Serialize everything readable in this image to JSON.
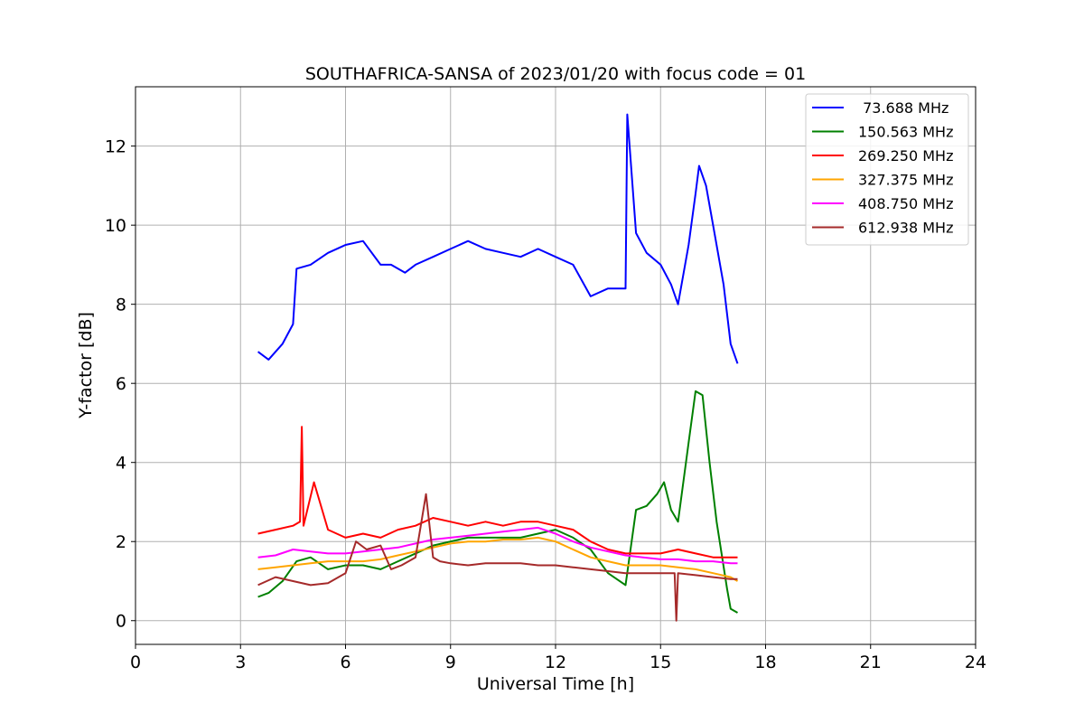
{
  "chart_data": {
    "type": "line",
    "title": "SOUTHAFRICA-SANSA of 2023/01/20 with focus code = 01",
    "xlabel": "Universal Time [h]",
    "ylabel": "Y-factor [dB]",
    "xlim": [
      0,
      24
    ],
    "ylim": [
      -0.6,
      13.5
    ],
    "xticks": [
      0,
      3,
      6,
      9,
      12,
      15,
      18,
      21,
      24
    ],
    "xtick_labels": [
      "0",
      "3",
      "6",
      "9",
      "12",
      "15",
      "18",
      "21",
      "24"
    ],
    "yticks": [
      0,
      2,
      4,
      6,
      8,
      10,
      12
    ],
    "ytick_labels": [
      "0",
      "2",
      "4",
      "6",
      "8",
      "10",
      "12"
    ],
    "grid": true,
    "legend_position": "top-right",
    "series": [
      {
        "name": " 73.688 MHz",
        "color": "#0000ff",
        "x": [
          3.5,
          3.8,
          4.2,
          4.5,
          4.6,
          5.0,
          5.5,
          6.0,
          6.5,
          7.0,
          7.3,
          7.7,
          8.0,
          8.5,
          9.0,
          9.5,
          10.0,
          10.5,
          11.0,
          11.5,
          12.0,
          12.5,
          13.0,
          13.5,
          14.0,
          14.05,
          14.3,
          14.6,
          15.0,
          15.3,
          15.5,
          15.8,
          16.0,
          16.1,
          16.3,
          16.5,
          16.8,
          17.0,
          17.2
        ],
        "y": [
          6.8,
          6.6,
          7.0,
          7.5,
          8.9,
          9.0,
          9.3,
          9.5,
          9.6,
          9.0,
          9.0,
          8.8,
          9.0,
          9.2,
          9.4,
          9.6,
          9.4,
          9.3,
          9.2,
          9.4,
          9.2,
          9.0,
          8.2,
          8.4,
          8.4,
          12.8,
          9.8,
          9.3,
          9.0,
          8.5,
          8.0,
          9.5,
          10.8,
          11.5,
          11.0,
          10.0,
          8.5,
          7.0,
          6.5
        ]
      },
      {
        "name": "150.563 MHz",
        "color": "#008000",
        "x": [
          3.5,
          3.8,
          4.2,
          4.6,
          5.0,
          5.5,
          6.0,
          6.5,
          7.0,
          7.5,
          8.0,
          8.5,
          9.0,
          9.5,
          10.0,
          10.5,
          11.0,
          11.5,
          12.0,
          12.5,
          13.0,
          13.5,
          14.0,
          14.3,
          14.6,
          14.9,
          15.1,
          15.3,
          15.5,
          15.8,
          16.0,
          16.2,
          16.4,
          16.6,
          16.9,
          17.0,
          17.2
        ],
        "y": [
          0.6,
          0.7,
          1.0,
          1.5,
          1.6,
          1.3,
          1.4,
          1.4,
          1.3,
          1.5,
          1.7,
          1.9,
          2.0,
          2.1,
          2.1,
          2.1,
          2.1,
          2.2,
          2.3,
          2.1,
          1.8,
          1.2,
          0.9,
          2.8,
          2.9,
          3.2,
          3.5,
          2.8,
          2.5,
          4.5,
          5.8,
          5.7,
          4.0,
          2.5,
          0.8,
          0.3,
          0.2
        ]
      },
      {
        "name": "269.250 MHz",
        "color": "#ff0000",
        "x": [
          3.5,
          4.0,
          4.5,
          4.7,
          4.75,
          4.8,
          5.1,
          5.5,
          6.0,
          6.5,
          7.0,
          7.5,
          8.0,
          8.5,
          9.0,
          9.5,
          10.0,
          10.5,
          11.0,
          11.5,
          12.0,
          12.5,
          13.0,
          13.5,
          14.0,
          14.5,
          15.0,
          15.5,
          16.0,
          16.5,
          17.0,
          17.2
        ],
        "y": [
          2.2,
          2.3,
          2.4,
          2.5,
          4.9,
          2.4,
          3.5,
          2.3,
          2.1,
          2.2,
          2.1,
          2.3,
          2.4,
          2.6,
          2.5,
          2.4,
          2.5,
          2.4,
          2.5,
          2.5,
          2.4,
          2.3,
          2.0,
          1.8,
          1.7,
          1.7,
          1.7,
          1.8,
          1.7,
          1.6,
          1.6,
          1.6
        ]
      },
      {
        "name": "327.375 MHz",
        "color": "#ffa500",
        "x": [
          3.5,
          4.0,
          4.5,
          5.0,
          5.5,
          6.0,
          6.5,
          7.0,
          7.5,
          8.0,
          8.5,
          9.0,
          9.5,
          10.0,
          10.5,
          11.0,
          11.5,
          12.0,
          12.5,
          13.0,
          13.5,
          14.0,
          14.5,
          15.0,
          15.5,
          16.0,
          16.5,
          17.0,
          17.2
        ],
        "y": [
          1.3,
          1.35,
          1.4,
          1.45,
          1.5,
          1.5,
          1.5,
          1.55,
          1.65,
          1.75,
          1.85,
          1.95,
          2.0,
          2.0,
          2.05,
          2.05,
          2.1,
          2.0,
          1.8,
          1.6,
          1.5,
          1.4,
          1.4,
          1.4,
          1.35,
          1.3,
          1.2,
          1.1,
          1.0
        ]
      },
      {
        "name": "408.750 MHz",
        "color": "#ff00ff",
        "x": [
          3.5,
          4.0,
          4.5,
          5.0,
          5.5,
          6.0,
          6.5,
          7.0,
          7.5,
          8.0,
          8.5,
          9.0,
          9.5,
          10.0,
          10.5,
          11.0,
          11.5,
          12.0,
          12.5,
          13.0,
          13.5,
          14.0,
          14.5,
          15.0,
          15.5,
          16.0,
          16.5,
          17.0,
          17.2
        ],
        "y": [
          1.6,
          1.65,
          1.8,
          1.75,
          1.7,
          1.7,
          1.75,
          1.8,
          1.85,
          1.95,
          2.05,
          2.1,
          2.15,
          2.2,
          2.25,
          2.3,
          2.35,
          2.2,
          2.0,
          1.85,
          1.75,
          1.65,
          1.6,
          1.55,
          1.55,
          1.5,
          1.5,
          1.45,
          1.45
        ]
      },
      {
        "name": "612.938 MHz",
        "color": "#a52a2a",
        "x": [
          3.5,
          4.0,
          4.5,
          5.0,
          5.5,
          6.0,
          6.3,
          6.6,
          7.0,
          7.3,
          7.6,
          8.0,
          8.3,
          8.5,
          8.7,
          9.0,
          9.5,
          10.0,
          10.5,
          11.0,
          11.5,
          12.0,
          12.5,
          13.0,
          13.5,
          14.0,
          14.5,
          15.0,
          15.4,
          15.45,
          15.5,
          16.0,
          16.5,
          17.0,
          17.2
        ],
        "y": [
          0.9,
          1.1,
          1.0,
          0.9,
          0.95,
          1.2,
          2.0,
          1.8,
          1.9,
          1.3,
          1.4,
          1.6,
          3.2,
          1.6,
          1.5,
          1.45,
          1.4,
          1.45,
          1.45,
          1.45,
          1.4,
          1.4,
          1.35,
          1.3,
          1.25,
          1.2,
          1.2,
          1.2,
          1.2,
          0.0,
          1.2,
          1.15,
          1.1,
          1.05,
          1.05
        ]
      }
    ]
  }
}
